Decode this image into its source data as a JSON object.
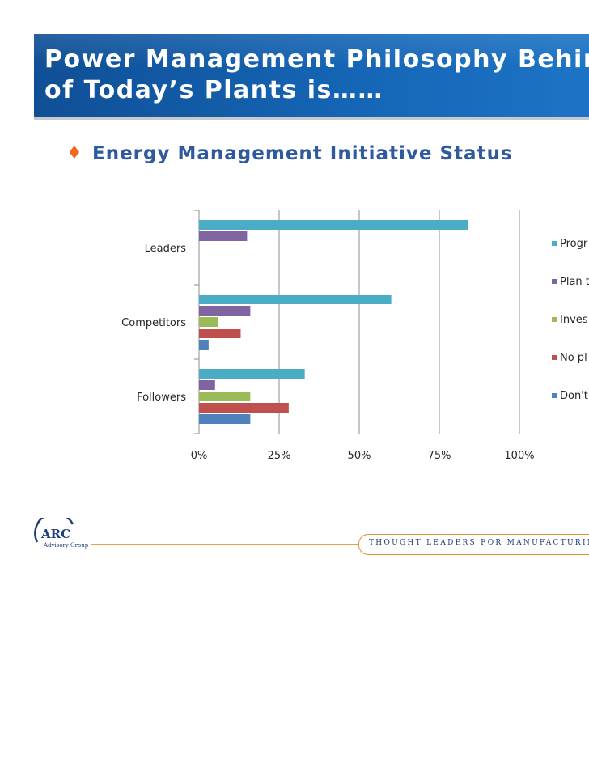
{
  "slide": {
    "title_line1": "Power Management Philosophy Behind",
    "title_line2": "of Today’s Plants is……",
    "bullet_symbol": "♦",
    "subtitle": "Energy Management Initiative Status"
  },
  "footer": {
    "logo_text": "ARC",
    "logo_subtext": "Advisory Group",
    "tagline": "THOUGHT LEADERS FOR MANUFACTURING & SUPPLY CH"
  },
  "colors": {
    "banner": "#1565b5",
    "accent_orange": "#ef6a1e",
    "subtitle_blue": "#2f5a9e"
  },
  "chart_data": {
    "type": "bar",
    "orientation": "horizontal",
    "title": "",
    "xlabel": "",
    "ylabel": "",
    "categories": [
      "Leaders",
      "Competitors",
      "Followers"
    ],
    "xlim": [
      0,
      100
    ],
    "ticks": [
      "0%",
      "25%",
      "50%",
      "75%",
      "100%"
    ],
    "grid": "vertical",
    "legend_position": "right",
    "series": [
      {
        "name": "Progr",
        "color": "#4bacc6",
        "values": [
          84,
          60,
          33
        ]
      },
      {
        "name": "Plan t",
        "color": "#8064a2",
        "values": [
          15,
          16,
          5
        ]
      },
      {
        "name": "Inves",
        "color": "#9bbb59",
        "values": [
          0,
          6,
          16
        ]
      },
      {
        "name": "No pl",
        "color": "#c0504d",
        "values": [
          0,
          13,
          28
        ]
      },
      {
        "name": "Don't",
        "color": "#4f81bd",
        "values": [
          0,
          3,
          16
        ]
      }
    ]
  }
}
